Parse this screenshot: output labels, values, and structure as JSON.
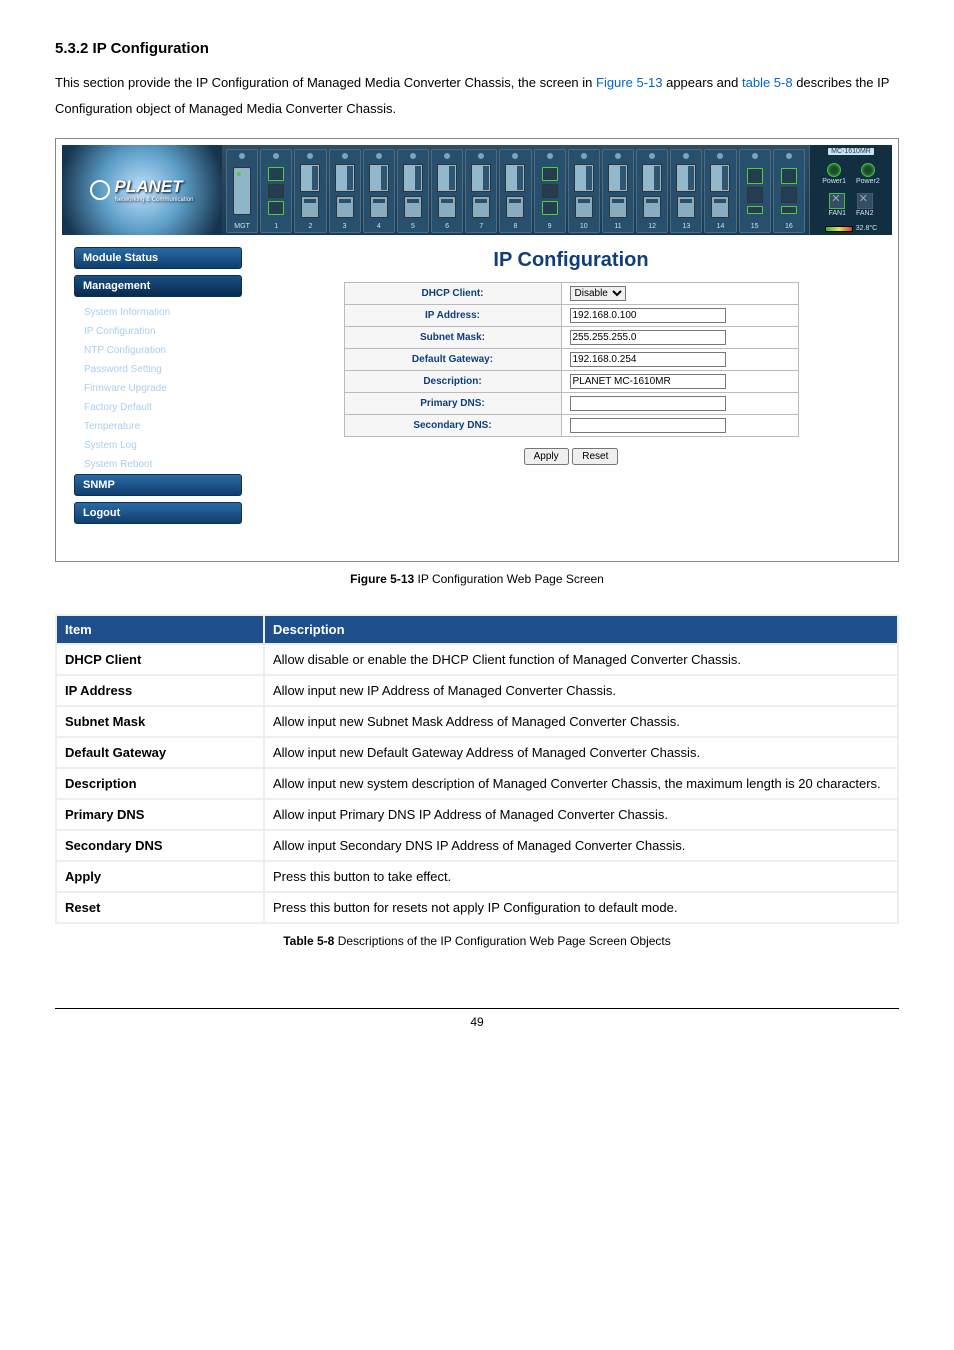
{
  "section": {
    "heading": "5.3.2 IP Configuration",
    "intro_a": "This section provide the IP Configuration of Managed Media Converter Chassis, the screen in ",
    "intro_fig": "Figure 5-13",
    "intro_b": " appears and ",
    "intro_tbl": "table 5-8",
    "intro_c": " describes the IP Configuration object of Managed Media Converter Chassis."
  },
  "banner": {
    "brand": "PLANET",
    "brand_tag": "Networking & Communication",
    "mgt_label": "MGT",
    "model": "MC-1610MR",
    "power1": "Power1",
    "power2": "Power2",
    "fan1": "FAN1",
    "fan2": "FAN2",
    "temp": "32.8°C",
    "slots": [
      "1",
      "2",
      "3",
      "4",
      "5",
      "6",
      "7",
      "8",
      "9",
      "10",
      "11",
      "12",
      "13",
      "14",
      "15",
      "16"
    ]
  },
  "sidebar": {
    "module_status": "Module Status",
    "management": "Management",
    "items": [
      "System Information",
      "IP Configuration",
      "NTP Configuration",
      "Password Setting",
      "Firmware Upgrade",
      "Factory Default",
      "Temperature",
      "System Log",
      "System Reboot"
    ],
    "snmp": "SNMP",
    "logout": "Logout"
  },
  "form": {
    "title": "IP Configuration",
    "dhcp_label": "DHCP Client:",
    "dhcp_value": "Disable",
    "ip_label": "IP Address:",
    "ip_value": "192.168.0.100",
    "mask_label": "Subnet Mask:",
    "mask_value": "255.255.255.0",
    "gw_label": "Default Gateway:",
    "gw_value": "192.168.0.254",
    "desc_label": "Description:",
    "desc_value": "PLANET MC-1610MR",
    "pdns_label": "Primary DNS:",
    "pdns_value": "",
    "sdns_label": "Secondary DNS:",
    "sdns_value": "",
    "apply": "Apply",
    "reset": "Reset"
  },
  "figcap": {
    "b": "Figure 5-13",
    "t": " IP Configuration Web Page Screen"
  },
  "dtable": {
    "h1": "Item",
    "h2": "Description",
    "rows": [
      [
        "DHCP Client",
        "Allow disable or enable the DHCP Client function of Managed Converter Chassis."
      ],
      [
        "IP Address",
        "Allow input new IP Address of Managed Converter Chassis."
      ],
      [
        "Subnet Mask",
        "Allow input new Subnet Mask Address of Managed Converter Chassis."
      ],
      [
        "Default Gateway",
        "Allow input new Default Gateway Address of Managed Converter Chassis."
      ],
      [
        "Description",
        "Allow input new system description of Managed Converter Chassis, the maximum length is 20 characters."
      ],
      [
        "Primary DNS",
        "Allow input Primary DNS IP Address of Managed Converter Chassis."
      ],
      [
        "Secondary DNS",
        "Allow input Secondary DNS IP Address of Managed Converter Chassis."
      ],
      [
        "Apply",
        "Press this button to take effect."
      ],
      [
        "Reset",
        "Press this button for resets not apply IP Configuration to default mode."
      ]
    ]
  },
  "tcap": {
    "b": "Table 5-8",
    "t": " Descriptions of the IP Configuration Web Page Screen Objects"
  },
  "page": "49"
}
